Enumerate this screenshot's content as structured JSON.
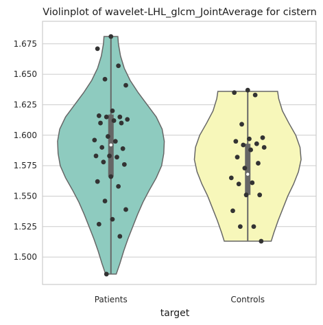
{
  "chart_data": {
    "type": "violin",
    "title": "Violinplot of wavelet-LHL_glcm_JointAverage for cistern",
    "xlabel": "target",
    "ylabel": "",
    "ylim": [
      1.4775,
      1.6935
    ],
    "yticks": [
      1.5,
      1.525,
      1.55,
      1.575,
      1.6,
      1.625,
      1.65,
      1.675
    ],
    "ytick_labels": [
      "1.500",
      "1.525",
      "1.550",
      "1.575",
      "1.600",
      "1.625",
      "1.650",
      "1.675"
    ],
    "grid": true,
    "categories": [
      "Patients",
      "Controls"
    ],
    "series": [
      {
        "category": "Patients",
        "color": "#8ecbbf",
        "range": [
          1.486,
          1.681
        ],
        "quartiles": [
          1.566,
          1.592,
          1.617
        ],
        "density": [
          [
            1.486,
            0.1
          ],
          [
            1.495,
            0.17
          ],
          [
            1.505,
            0.24
          ],
          [
            1.515,
            0.32
          ],
          [
            1.525,
            0.41
          ],
          [
            1.535,
            0.5
          ],
          [
            1.545,
            0.6
          ],
          [
            1.555,
            0.72
          ],
          [
            1.565,
            0.85
          ],
          [
            1.575,
            0.95
          ],
          [
            1.585,
            0.99
          ],
          [
            1.595,
            1.0
          ],
          [
            1.605,
            0.96
          ],
          [
            1.615,
            0.85
          ],
          [
            1.625,
            0.68
          ],
          [
            1.635,
            0.51
          ],
          [
            1.645,
            0.36
          ],
          [
            1.655,
            0.25
          ],
          [
            1.665,
            0.18
          ],
          [
            1.675,
            0.14
          ],
          [
            1.681,
            0.13
          ]
        ],
        "points": [
          1.681,
          1.671,
          1.657,
          1.646,
          1.641,
          1.62,
          1.616,
          1.615,
          1.615,
          1.613,
          1.612,
          1.61,
          1.61,
          1.599,
          1.596,
          1.595,
          1.59,
          1.589,
          1.583,
          1.583,
          1.582,
          1.578,
          1.576,
          1.566,
          1.562,
          1.558,
          1.546,
          1.539,
          1.531,
          1.527,
          1.517,
          1.486
        ]
      },
      {
        "category": "Controls",
        "color": "#f7f7ba",
        "range": [
          1.513,
          1.636
        ],
        "quartiles": [
          1.551,
          1.568,
          1.593
        ],
        "density": [
          [
            1.513,
            0.44
          ],
          [
            1.52,
            0.49
          ],
          [
            1.53,
            0.57
          ],
          [
            1.54,
            0.66
          ],
          [
            1.55,
            0.75
          ],
          [
            1.56,
            0.86
          ],
          [
            1.57,
            0.95
          ],
          [
            1.58,
            1.0
          ],
          [
            1.59,
            0.98
          ],
          [
            1.6,
            0.9
          ],
          [
            1.61,
            0.77
          ],
          [
            1.62,
            0.65
          ],
          [
            1.63,
            0.58
          ],
          [
            1.636,
            0.56
          ]
        ],
        "points": [
          1.637,
          1.635,
          1.633,
          1.609,
          1.598,
          1.597,
          1.595,
          1.593,
          1.592,
          1.59,
          1.588,
          1.582,
          1.577,
          1.573,
          1.565,
          1.561,
          1.56,
          1.551,
          1.551,
          1.538,
          1.525,
          1.525,
          1.513
        ]
      }
    ]
  }
}
